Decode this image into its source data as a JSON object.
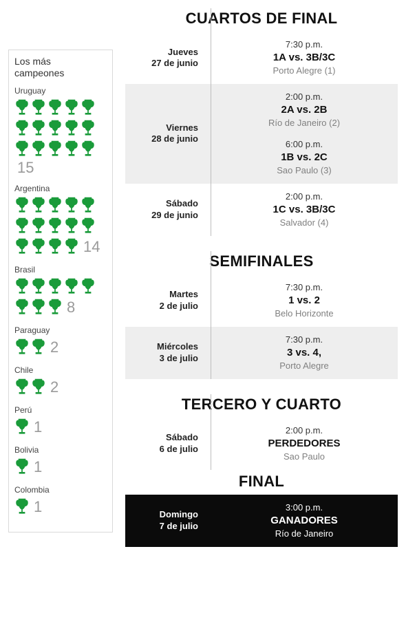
{
  "colors": {
    "trophy": "#1a9b3a",
    "shade_bg": "#eeeeee",
    "rule": "#bdbdbd",
    "sidebar_border": "#d9d9d9",
    "count": "#9a9a9a",
    "venue": "#808080",
    "final_bg": "#0b0b0b"
  },
  "sidebar": {
    "title_l1": "Los más",
    "title_l2": "campeones",
    "countries": [
      {
        "name": "Uruguay",
        "count": "15"
      },
      {
        "name": "Argentina",
        "count": "14"
      },
      {
        "name": "Brasil",
        "count": "8"
      },
      {
        "name": "Paraguay",
        "count": "2"
      },
      {
        "name": "Chile",
        "count": "2"
      },
      {
        "name": "Perú",
        "count": "1"
      },
      {
        "name": "Bolivia",
        "count": "1"
      },
      {
        "name": "Colombia",
        "count": "1"
      }
    ]
  },
  "stages": {
    "qf": {
      "title": "CUARTOS DE FINAL",
      "rows": [
        {
          "day_l1": "Jueves",
          "day_l2": "27 de junio",
          "shade": false,
          "m": [
            {
              "time": "7:30 p.m.",
              "teams": "1A vs. 3B/3C",
              "venue": "Porto Alegre (1)"
            }
          ]
        },
        {
          "day_l1": "Viernes",
          "day_l2": "28 de junio",
          "shade": true,
          "m": [
            {
              "time": "2:00 p.m.",
              "teams": "2A vs. 2B",
              "venue": "Río de Janeiro (2)"
            },
            {
              "time": "6:00 p.m.",
              "teams": "1B vs. 2C",
              "venue": "Sao Paulo (3)"
            }
          ]
        },
        {
          "day_l1": "Sábado",
          "day_l2": "29 de junio",
          "shade": false,
          "m": [
            {
              "time": "2:00 p.m.",
              "teams": "1C vs. 3B/3C",
              "venue": "Salvador (4)"
            }
          ]
        }
      ]
    },
    "sf": {
      "title": "SEMIFINALES",
      "rows": [
        {
          "day_l1": "Martes",
          "day_l2": "2 de julio",
          "shade": false,
          "m": [
            {
              "time": "7:30 p.m.",
              "teams": "1 vs. 2",
              "venue": "Belo Horizonte"
            }
          ]
        },
        {
          "day_l1": "Miércoles",
          "day_l2": "3 de julio",
          "shade": true,
          "m": [
            {
              "time": "7:30 p.m.",
              "teams": "3 vs. 4,",
              "venue": "Porto Alegre"
            }
          ]
        }
      ]
    },
    "third": {
      "title": "TERCERO Y CUARTO",
      "rows": [
        {
          "day_l1": "Sábado",
          "day_l2": "6 de julio",
          "shade": false,
          "m": [
            {
              "time": "2:00 p.m.",
              "teams": "PERDEDORES",
              "venue": "Sao Paulo"
            }
          ]
        }
      ]
    },
    "final": {
      "title": "FINAL",
      "row": {
        "day_l1": "Domingo",
        "day_l2": "7 de julio",
        "m": {
          "time": "3:00 p.m.",
          "teams": "GANADORES",
          "venue": "Río de Janeiro"
        }
      }
    }
  }
}
